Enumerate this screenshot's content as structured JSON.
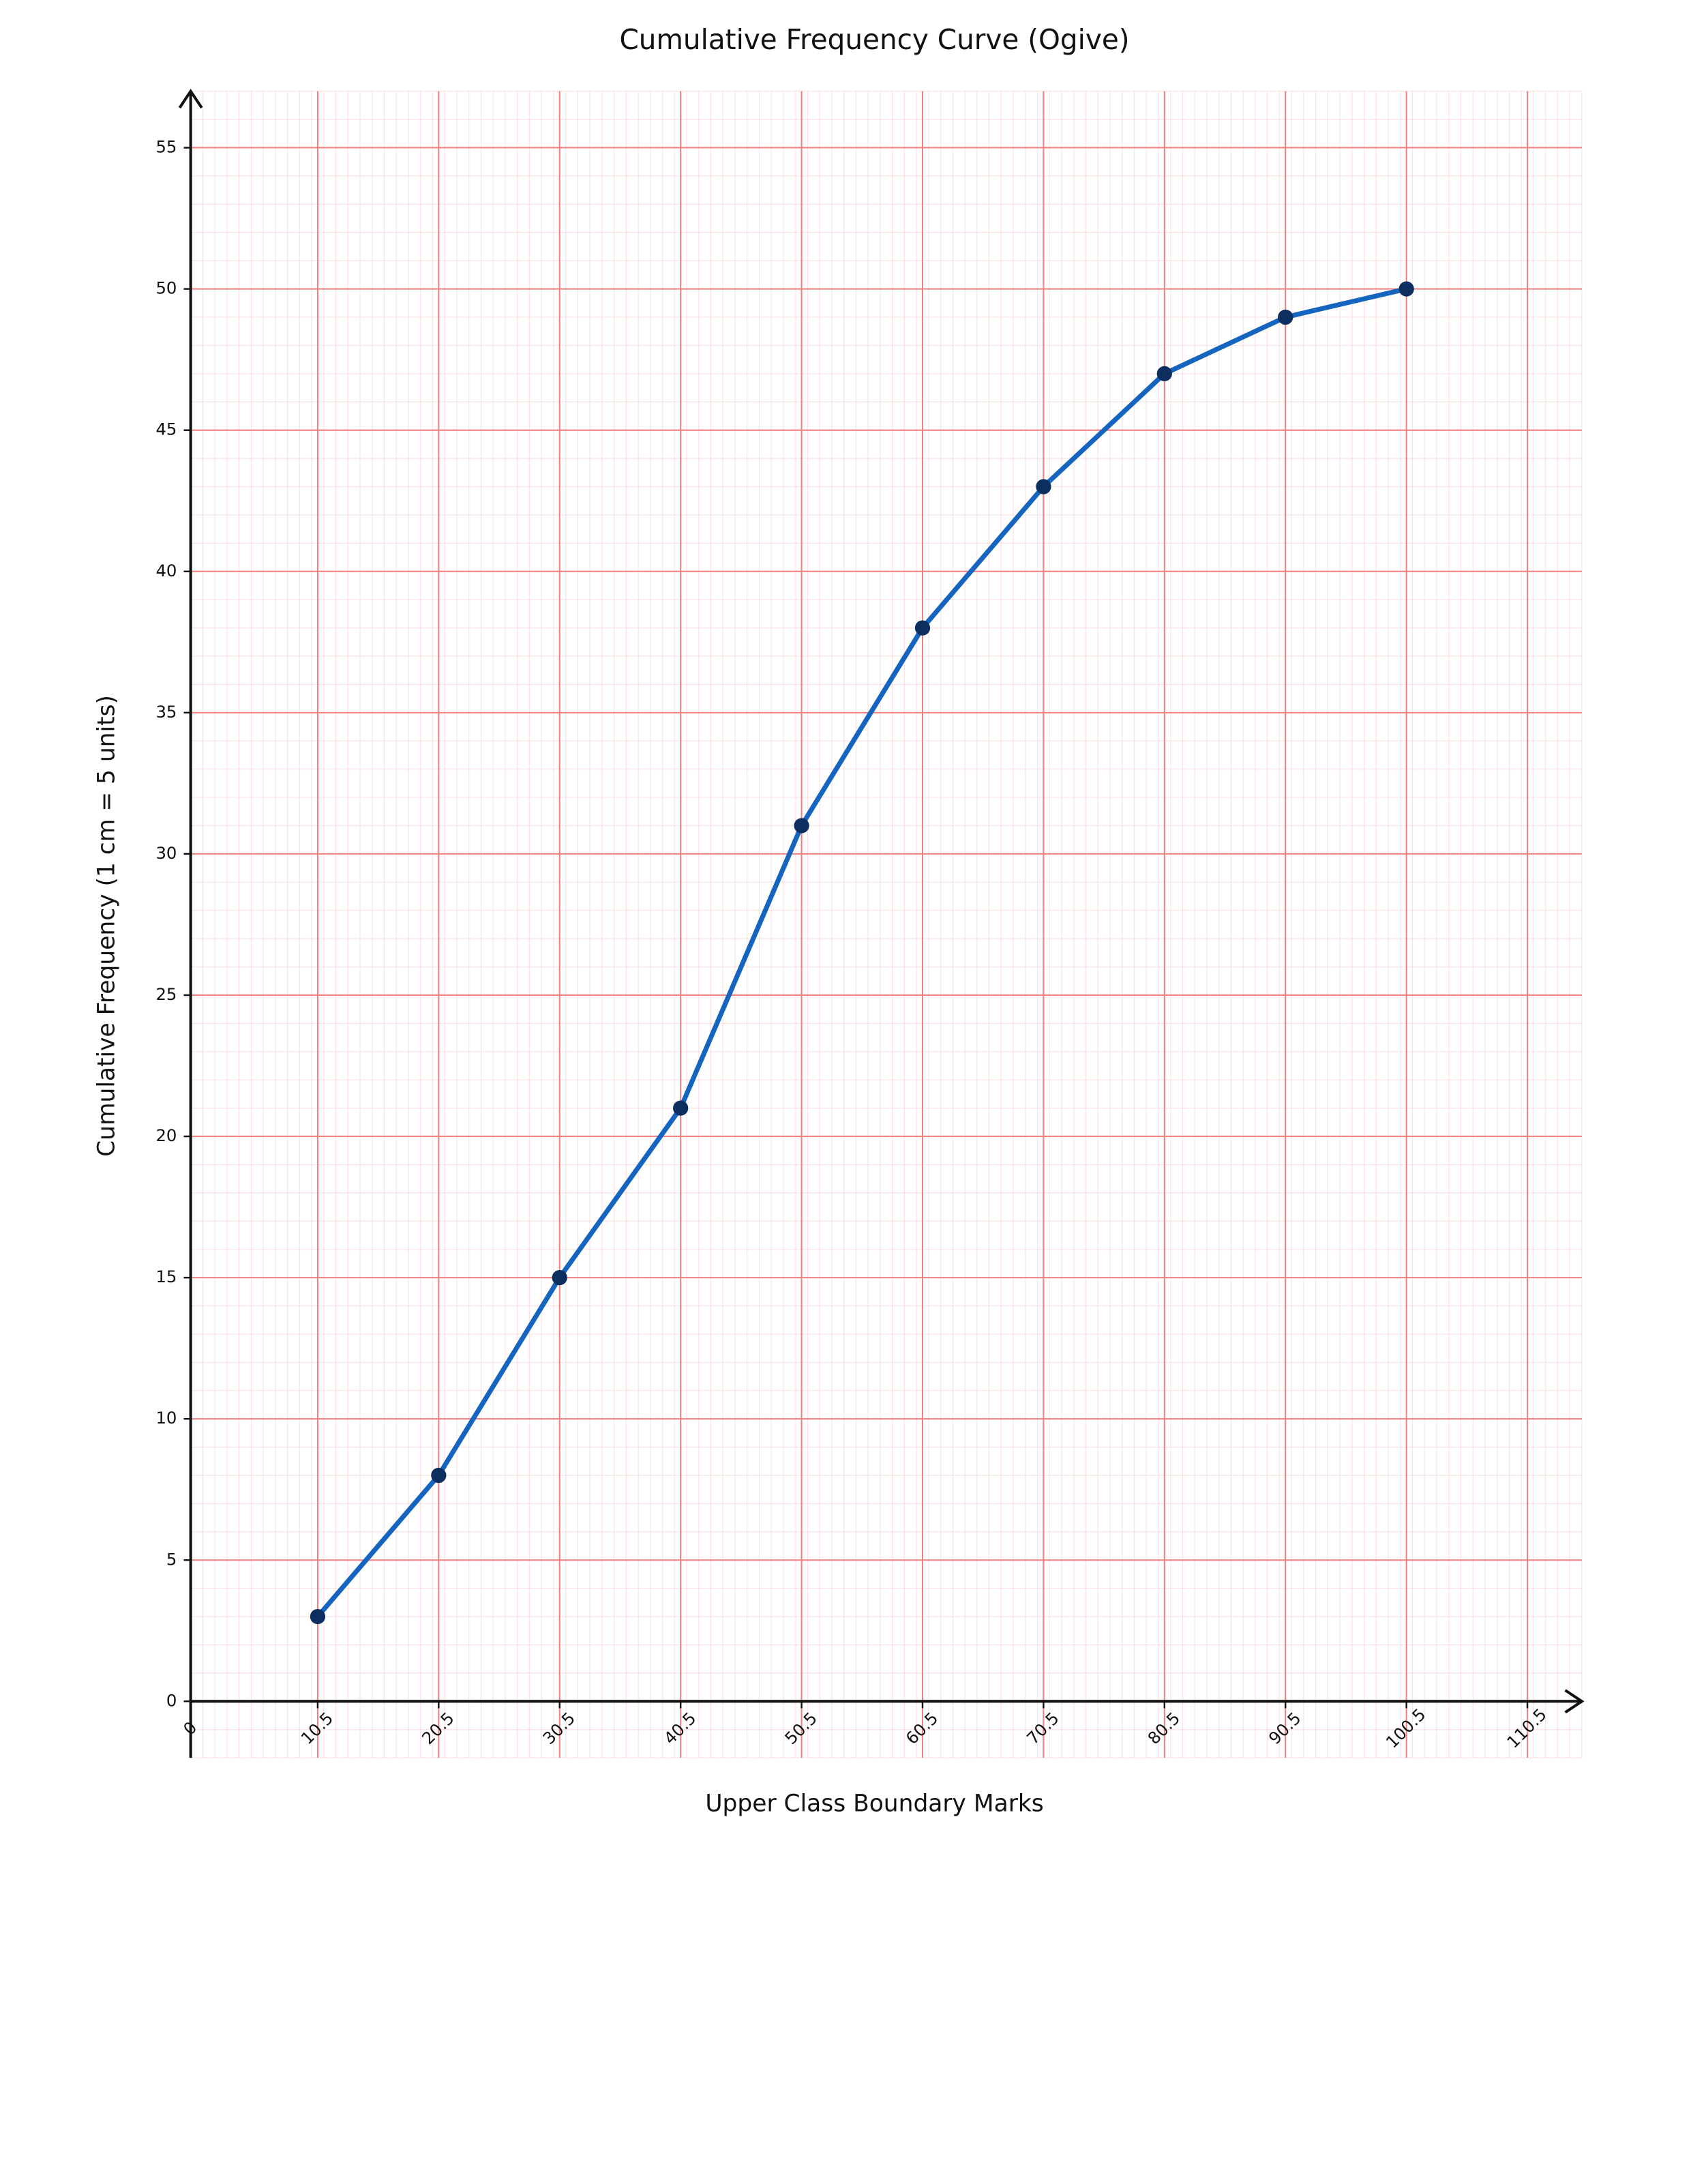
{
  "chart_data": {
    "type": "line",
    "title": "Cumulative Frequency Curve (Ogive)",
    "x_label": "Upper Class Boundary Marks",
    "y_label": "Cumulative Frequency (1 cm = 5 units)",
    "x": [
      10.5,
      20.5,
      30.5,
      40.5,
      50.5,
      60.5,
      70.5,
      80.5,
      90.5,
      100.5
    ],
    "values": [
      3,
      8,
      15,
      21,
      31,
      38,
      43,
      47,
      49,
      50
    ],
    "color": "#1565c0",
    "marker_color": "#0d2f5f",
    "xlim": [
      0,
      115
    ],
    "ylim": [
      -2,
      57
    ],
    "xticks": [
      0,
      10.5,
      20.5,
      30.5,
      40.5,
      50.5,
      60.5,
      70.5,
      80.5,
      90.5,
      100.5,
      110.5
    ],
    "yticks": [
      0,
      5,
      10,
      15,
      20,
      25,
      30,
      35,
      40,
      45,
      50,
      55
    ],
    "grid": true,
    "grid_color": "#f08080"
  }
}
